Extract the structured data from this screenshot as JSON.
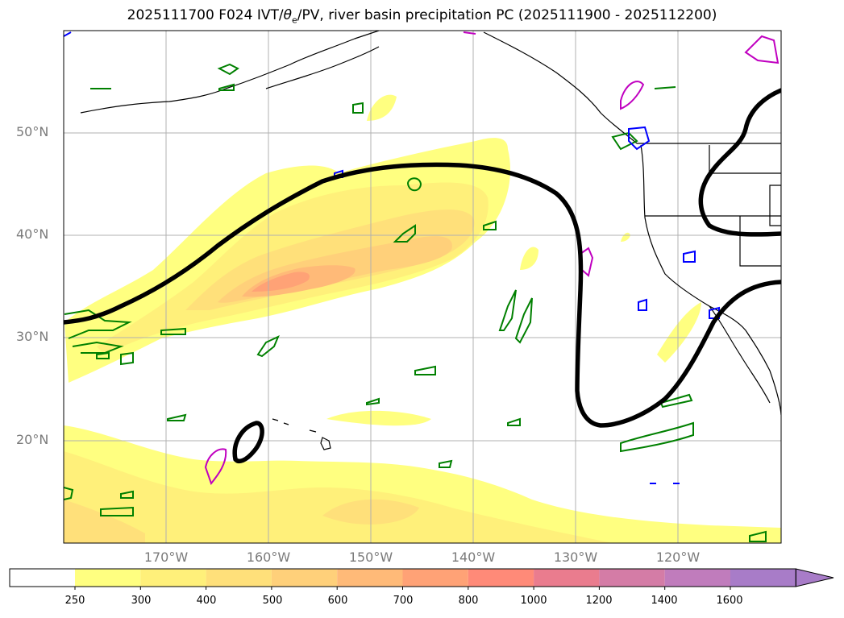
{
  "title": "2025111700 F024 IVT/θe/PV, river basin precipitation PC (2025111900 - 2025112200)",
  "title_parts": {
    "pre": "2025111700 F024 IVT/",
    "theta": "θ",
    "sub": "e",
    "post": "/PV, river basin precipitation PC (2025111900 - 2025112200)"
  },
  "map": {
    "lat_labels": [
      "50°N",
      "40°N",
      "30°N",
      "20°N"
    ],
    "lon_labels": [
      "170°W",
      "160°W",
      "150°W",
      "140°W",
      "130°W",
      "120°W"
    ],
    "extent": {
      "lon_min": -180,
      "lon_max": -110,
      "lat_min": 10,
      "lat_max": 60
    },
    "grid": true
  },
  "colorbar": {
    "ticks": [
      "250",
      "300",
      "400",
      "500",
      "600",
      "700",
      "800",
      "1000",
      "1200",
      "1400",
      "1600"
    ],
    "colors": [
      "#ffffff",
      "#ffff80",
      "#fff07a",
      "#ffe07a",
      "#ffd07a",
      "#ffba78",
      "#ffa276",
      "#ff8a78",
      "#ea7c8e",
      "#d47ca6",
      "#c07cbc",
      "#a87cc8"
    ],
    "extend": "max"
  },
  "legend_colors": {
    "theta_e_contour": "#000000",
    "pv_green": "#008000",
    "pv_blue": "#0000ff",
    "pv_magenta": "#c000c0",
    "coastline": "#000000"
  }
}
